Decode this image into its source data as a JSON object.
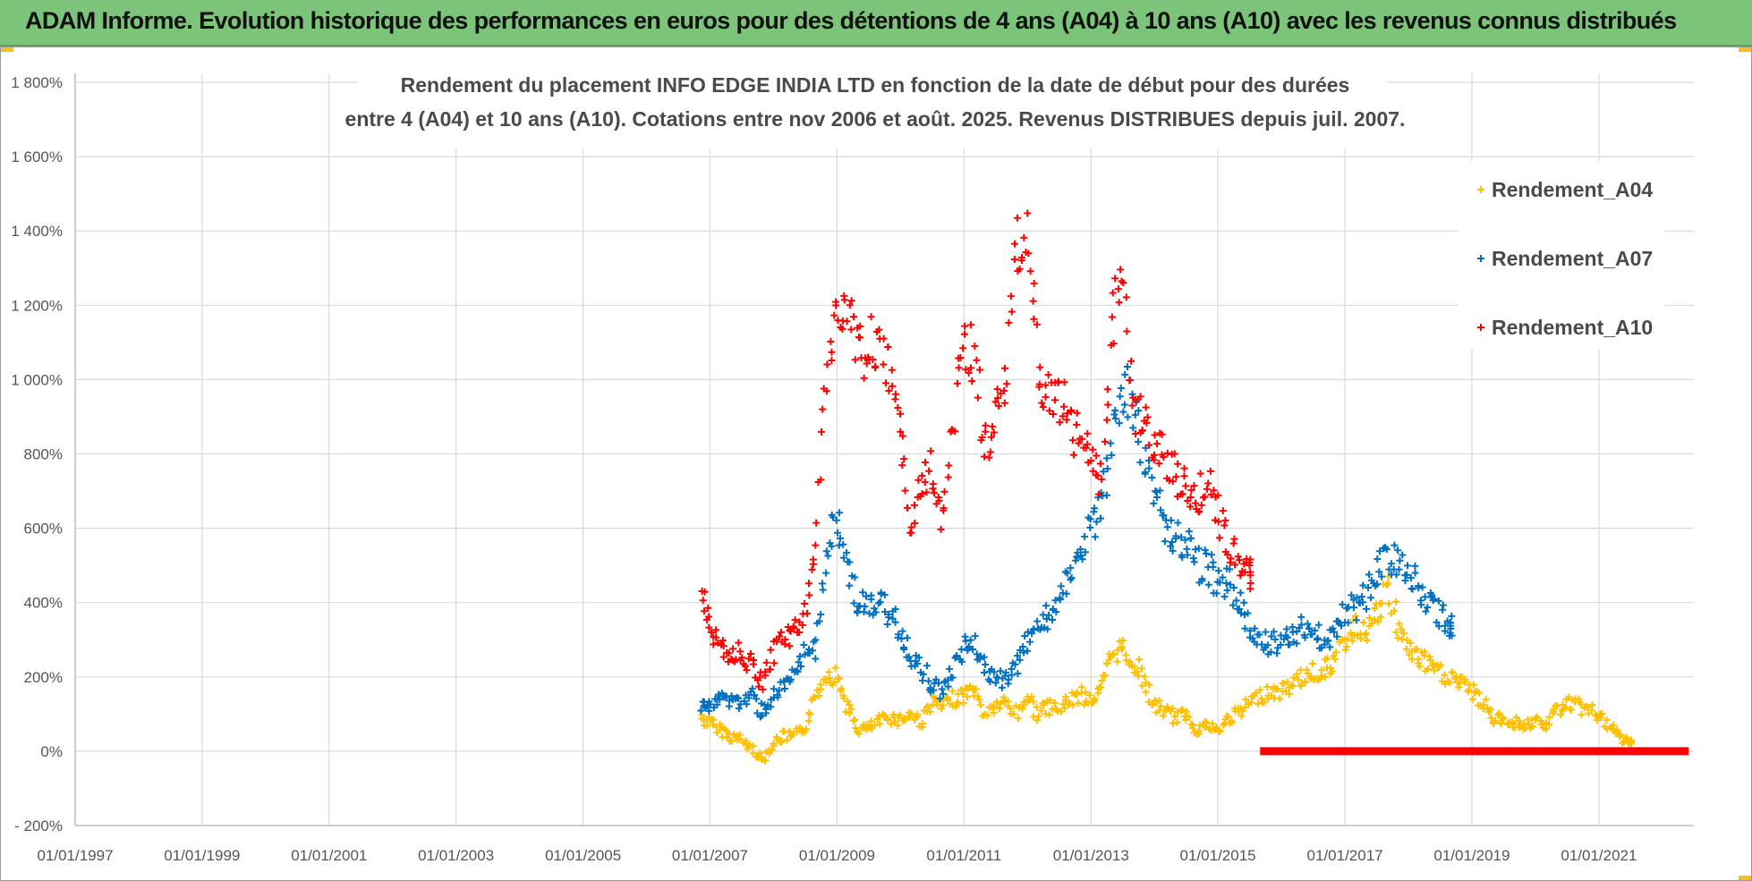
{
  "header": {
    "title": "ADAM Informe. Evolution historique des performances en euros pour des détentions de 4 ans (A04) à 10 ans (A10) avec les revenus connus distribués"
  },
  "colors": {
    "header_bg": "#7dc47b",
    "A04": "#ffc000",
    "A07": "#0070c0",
    "A10": "#ff0000",
    "grid": "#d9d9d9"
  },
  "chart_data": {
    "type": "scatter",
    "title_lines": [
      "Rendement du placement INFO EDGE INDIA LTD en fonction de la date de début pour des durées",
      "entre 4 (A04) et 10 ans (A10). Cotations entre nov 2006 et août. 2025. Revenus DISTRIBUES depuis juil. 2007."
    ],
    "marker": "+",
    "x_axis": {
      "type": "date",
      "min": "1997-01-01",
      "max": "2022-07-01",
      "tick_labels": [
        "01/01/1997",
        "01/01/1999",
        "01/01/2001",
        "01/01/2003",
        "01/01/2005",
        "01/01/2007",
        "01/01/2009",
        "01/01/2011",
        "01/01/2013",
        "01/01/2015",
        "01/01/2017",
        "01/01/2019",
        "01/01/2021"
      ]
    },
    "y_axis": {
      "unit": "%",
      "min": -200,
      "max": 1800,
      "step": 200,
      "tick_labels": [
        "1 800%",
        "1 600%",
        "1 400%",
        "1 200%",
        "1 000%",
        "800%",
        "600%",
        "400%",
        "200%",
        "0%",
        "- 200%"
      ]
    },
    "grid": true,
    "legend_position": "top-right",
    "series": [
      {
        "name": "Rendement_A04",
        "color": "#ffc000",
        "points": [
          [
            "2006-11-15",
            90
          ],
          [
            "2007-01-01",
            75
          ],
          [
            "2007-03-01",
            60
          ],
          [
            "2007-05-01",
            40
          ],
          [
            "2007-07-01",
            30
          ],
          [
            "2007-09-01",
            5
          ],
          [
            "2007-11-01",
            -25
          ],
          [
            "2008-01-01",
            20
          ],
          [
            "2008-03-01",
            40
          ],
          [
            "2008-05-01",
            40
          ],
          [
            "2008-07-01",
            60
          ],
          [
            "2008-09-01",
            150
          ],
          [
            "2008-11-01",
            210
          ],
          [
            "2009-01-01",
            200
          ],
          [
            "2009-03-01",
            120
          ],
          [
            "2009-05-01",
            60
          ],
          [
            "2009-07-01",
            60
          ],
          [
            "2009-09-01",
            80
          ],
          [
            "2009-11-01",
            90
          ],
          [
            "2010-01-01",
            85
          ],
          [
            "2010-03-01",
            100
          ],
          [
            "2010-05-01",
            80
          ],
          [
            "2010-07-01",
            130
          ],
          [
            "2010-09-01",
            120
          ],
          [
            "2010-11-01",
            140
          ],
          [
            "2011-01-01",
            150
          ],
          [
            "2011-03-01",
            170
          ],
          [
            "2011-05-01",
            100
          ],
          [
            "2011-07-01",
            120
          ],
          [
            "2011-09-01",
            130
          ],
          [
            "2011-11-01",
            100
          ],
          [
            "2012-01-01",
            150
          ],
          [
            "2012-03-01",
            100
          ],
          [
            "2012-05-01",
            120
          ],
          [
            "2012-07-01",
            110
          ],
          [
            "2012-09-01",
            140
          ],
          [
            "2012-11-01",
            150
          ],
          [
            "2013-01-01",
            140
          ],
          [
            "2013-03-01",
            160
          ],
          [
            "2013-05-01",
            260
          ],
          [
            "2013-07-01",
            280
          ],
          [
            "2013-09-01",
            240
          ],
          [
            "2013-11-01",
            190
          ],
          [
            "2014-01-01",
            120
          ],
          [
            "2014-03-01",
            110
          ],
          [
            "2014-05-01",
            90
          ],
          [
            "2014-07-01",
            100
          ],
          [
            "2014-09-01",
            60
          ],
          [
            "2014-11-01",
            70
          ],
          [
            "2015-01-01",
            50
          ],
          [
            "2015-03-01",
            90
          ],
          [
            "2015-05-01",
            100
          ],
          [
            "2015-07-01",
            130
          ],
          [
            "2015-09-01",
            150
          ],
          [
            "2015-11-01",
            160
          ],
          [
            "2016-01-01",
            160
          ],
          [
            "2016-03-01",
            180
          ],
          [
            "2016-05-01",
            200
          ],
          [
            "2016-07-01",
            210
          ],
          [
            "2016-09-01",
            220
          ],
          [
            "2016-11-01",
            240
          ],
          [
            "2017-01-01",
            300
          ],
          [
            "2017-03-01",
            330
          ],
          [
            "2017-05-01",
            330
          ],
          [
            "2017-07-01",
            360
          ],
          [
            "2017-09-01",
            440
          ],
          [
            "2017-11-01",
            340
          ],
          [
            "2018-01-01",
            270
          ],
          [
            "2018-03-01",
            250
          ],
          [
            "2018-05-01",
            230
          ],
          [
            "2018-07-01",
            210
          ],
          [
            "2018-09-01",
            200
          ],
          [
            "2018-11-01",
            180
          ],
          [
            "2019-01-01",
            160
          ],
          [
            "2019-03-01",
            130
          ],
          [
            "2019-05-01",
            90
          ],
          [
            "2019-07-01",
            80
          ],
          [
            "2019-09-01",
            80
          ],
          [
            "2019-11-01",
            70
          ],
          [
            "2020-01-01",
            80
          ],
          [
            "2020-03-01",
            65
          ],
          [
            "2020-05-01",
            110
          ],
          [
            "2020-07-01",
            130
          ],
          [
            "2020-09-01",
            120
          ],
          [
            "2020-11-01",
            110
          ],
          [
            "2021-01-01",
            100
          ],
          [
            "2021-03-01",
            60
          ],
          [
            "2021-05-01",
            40
          ],
          [
            "2021-07-01",
            20
          ]
        ]
      },
      {
        "name": "Rendement_A07",
        "color": "#0070c0",
        "points": [
          [
            "2006-11-15",
            130
          ],
          [
            "2007-01-01",
            120
          ],
          [
            "2007-03-01",
            140
          ],
          [
            "2007-05-01",
            140
          ],
          [
            "2007-07-01",
            130
          ],
          [
            "2007-09-01",
            150
          ],
          [
            "2007-11-01",
            100
          ],
          [
            "2008-01-01",
            150
          ],
          [
            "2008-03-01",
            170
          ],
          [
            "2008-05-01",
            200
          ],
          [
            "2008-07-01",
            260
          ],
          [
            "2008-09-01",
            280
          ],
          [
            "2008-11-01",
            540
          ],
          [
            "2009-01-01",
            620
          ],
          [
            "2009-03-01",
            500
          ],
          [
            "2009-05-01",
            400
          ],
          [
            "2009-07-01",
            380
          ],
          [
            "2009-09-01",
            400
          ],
          [
            "2009-11-01",
            360
          ],
          [
            "2010-01-01",
            330
          ],
          [
            "2010-03-01",
            260
          ],
          [
            "2010-05-01",
            220
          ],
          [
            "2010-07-01",
            180
          ],
          [
            "2010-09-01",
            160
          ],
          [
            "2010-11-01",
            220
          ],
          [
            "2011-01-01",
            280
          ],
          [
            "2011-03-01",
            300
          ],
          [
            "2011-05-01",
            210
          ],
          [
            "2011-07-01",
            190
          ],
          [
            "2011-09-01",
            200
          ],
          [
            "2011-11-01",
            220
          ],
          [
            "2012-01-01",
            300
          ],
          [
            "2012-03-01",
            350
          ],
          [
            "2012-05-01",
            360
          ],
          [
            "2012-07-01",
            400
          ],
          [
            "2012-09-01",
            460
          ],
          [
            "2012-11-01",
            540
          ],
          [
            "2013-01-01",
            600
          ],
          [
            "2013-03-01",
            650
          ],
          [
            "2013-05-01",
            820
          ],
          [
            "2013-07-01",
            980
          ],
          [
            "2013-09-01",
            920
          ],
          [
            "2013-11-01",
            800
          ],
          [
            "2014-01-01",
            720
          ],
          [
            "2014-03-01",
            600
          ],
          [
            "2014-05-01",
            560
          ],
          [
            "2014-07-01",
            580
          ],
          [
            "2014-09-01",
            500
          ],
          [
            "2014-11-01",
            500
          ],
          [
            "2015-01-01",
            450
          ],
          [
            "2015-03-01",
            460
          ],
          [
            "2015-05-01",
            400
          ],
          [
            "2015-07-01",
            330
          ],
          [
            "2015-09-01",
            310
          ],
          [
            "2015-11-01",
            290
          ],
          [
            "2016-01-01",
            300
          ],
          [
            "2016-03-01",
            320
          ],
          [
            "2016-05-01",
            330
          ],
          [
            "2016-07-01",
            320
          ],
          [
            "2016-09-01",
            300
          ],
          [
            "2016-11-01",
            320
          ],
          [
            "2017-01-01",
            380
          ],
          [
            "2017-03-01",
            390
          ],
          [
            "2017-05-01",
            420
          ],
          [
            "2017-07-01",
            470
          ],
          [
            "2017-09-01",
            540
          ],
          [
            "2017-11-01",
            500
          ],
          [
            "2018-01-01",
            480
          ],
          [
            "2018-03-01",
            440
          ],
          [
            "2018-05-01",
            400
          ],
          [
            "2018-07-01",
            370
          ],
          [
            "2018-09-01",
            340
          ]
        ]
      },
      {
        "name": "Rendement_A10",
        "color": "#ff0000",
        "points": [
          [
            "2006-11-15",
            440
          ],
          [
            "2007-01-01",
            330
          ],
          [
            "2007-03-01",
            290
          ],
          [
            "2007-05-01",
            260
          ],
          [
            "2007-07-01",
            270
          ],
          [
            "2007-09-01",
            230
          ],
          [
            "2007-11-01",
            180
          ],
          [
            "2008-01-01",
            260
          ],
          [
            "2008-03-01",
            320
          ],
          [
            "2008-05-01",
            310
          ],
          [
            "2008-07-01",
            380
          ],
          [
            "2008-09-01",
            560
          ],
          [
            "2008-11-01",
            1000
          ],
          [
            "2009-01-01",
            1200
          ],
          [
            "2009-03-01",
            1230
          ],
          [
            "2009-05-01",
            1080
          ],
          [
            "2009-07-01",
            1100
          ],
          [
            "2009-09-01",
            1060
          ],
          [
            "2009-11-01",
            1000
          ],
          [
            "2010-01-01",
            850
          ],
          [
            "2010-03-01",
            600
          ],
          [
            "2010-05-01",
            720
          ],
          [
            "2010-07-01",
            760
          ],
          [
            "2010-09-01",
            640
          ],
          [
            "2010-11-01",
            900
          ],
          [
            "2011-01-01",
            1120
          ],
          [
            "2011-03-01",
            1050
          ],
          [
            "2011-05-01",
            820
          ],
          [
            "2011-07-01",
            940
          ],
          [
            "2011-09-01",
            1000
          ],
          [
            "2011-11-01",
            1350
          ],
          [
            "2012-01-01",
            1400
          ],
          [
            "2012-03-01",
            1050
          ],
          [
            "2012-05-01",
            950
          ],
          [
            "2012-07-01",
            940
          ],
          [
            "2012-09-01",
            900
          ],
          [
            "2012-11-01",
            830
          ],
          [
            "2013-01-01",
            780
          ],
          [
            "2013-03-01",
            720
          ],
          [
            "2013-05-01",
            1150
          ],
          [
            "2013-07-01",
            1280
          ],
          [
            "2013-09-01",
            900
          ],
          [
            "2013-11-01",
            870
          ],
          [
            "2014-01-01",
            820
          ],
          [
            "2014-03-01",
            780
          ],
          [
            "2014-05-01",
            760
          ],
          [
            "2014-07-01",
            700
          ],
          [
            "2014-09-01",
            680
          ],
          [
            "2014-11-01",
            720
          ],
          [
            "2015-01-01",
            650
          ],
          [
            "2015-03-01",
            540
          ],
          [
            "2015-05-01",
            520
          ],
          [
            "2015-07-01",
            480
          ]
        ]
      },
      {
        "name": "",
        "color": "#ff0000",
        "description_line": true,
        "points": [
          [
            "2015-09-01",
            0
          ],
          [
            "2022-06-01",
            0
          ]
        ]
      }
    ]
  }
}
